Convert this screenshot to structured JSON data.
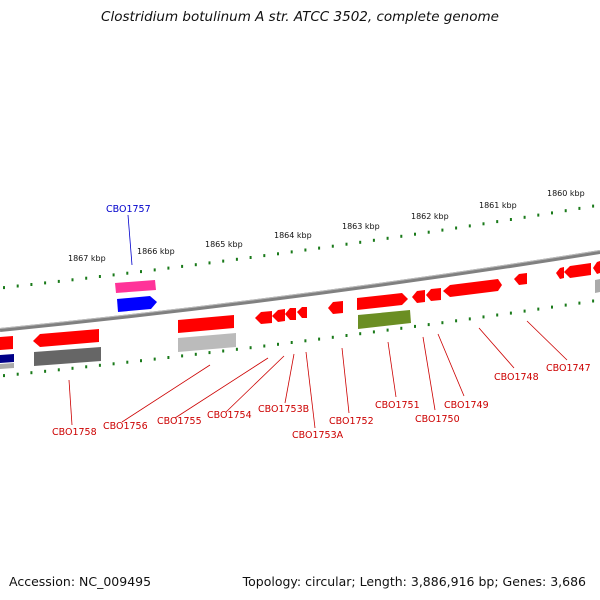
{
  "title": "Clostridium botulinum A str. ATCC 3502, complete genome",
  "footer": {
    "accession": "Accession: NC_009495",
    "summary": "Topology: circular; Length: 3,886,916 bp; Genes: 3,686"
  },
  "colors": {
    "forward": "#ff0000",
    "reverse": "#ff0000",
    "backbone": "#808080",
    "tick": "#1a7a1a",
    "highlight_label": "#0000cc",
    "label": "#cc0000",
    "pink": "#ff3399",
    "blue": "#0000ff",
    "olive": "#6b8e23",
    "gray": "#808080"
  },
  "kbp_labels": [
    "1867 kbp",
    "1866 kbp",
    "1865 kbp",
    "1864 kbp",
    "1863 kbp",
    "1862 kbp",
    "1861 kbp",
    "1860 kbp"
  ],
  "gene_labels": [
    "CBO1757",
    "CBO1758",
    "CBO1756",
    "CBO1755",
    "CBO1754",
    "CBO1753B",
    "CBO1753A",
    "CBO1752",
    "CBO1751",
    "CBO1750",
    "CBO1749",
    "CBO1748",
    "CBO1747"
  ]
}
